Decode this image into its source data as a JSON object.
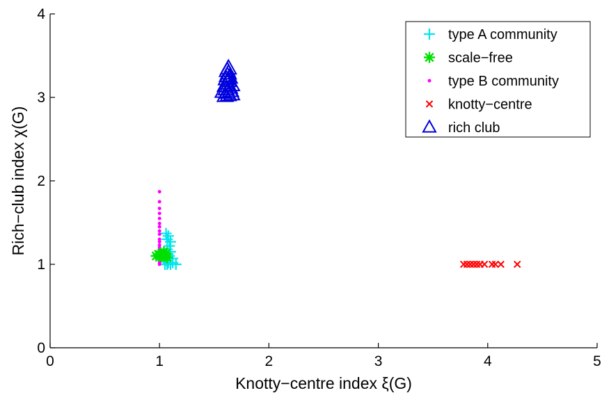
{
  "chart_data": {
    "type": "scatter",
    "xlabel": "Knotty−centre index ξ(G)",
    "ylabel": "Rich−club index χ(G)",
    "xlim": [
      0,
      5
    ],
    "ylim": [
      0,
      4
    ],
    "xticks": [
      "0",
      "1",
      "2",
      "3",
      "4",
      "5"
    ],
    "yticks": [
      "0",
      "1",
      "2",
      "3",
      "4"
    ],
    "grid": false,
    "legend_position": "top-right",
    "series": [
      {
        "name": "type A community",
        "marker": "plus",
        "color": "#00e5ee",
        "points": [
          [
            1.05,
            1.0
          ],
          [
            1.07,
            1.0
          ],
          [
            1.1,
            1.0
          ],
          [
            1.15,
            1.0
          ],
          [
            1.08,
            1.02
          ],
          [
            1.06,
            1.05
          ],
          [
            1.12,
            1.07
          ],
          [
            1.09,
            1.1
          ],
          [
            1.06,
            1.12
          ],
          [
            1.1,
            1.15
          ],
          [
            1.07,
            1.18
          ],
          [
            1.09,
            1.22
          ],
          [
            1.1,
            1.27
          ],
          [
            1.07,
            1.3
          ],
          [
            1.08,
            1.34
          ],
          [
            1.06,
            1.37
          ],
          [
            1.12,
            1.02
          ],
          [
            1.05,
            1.08
          ]
        ]
      },
      {
        "name": "scale−free",
        "marker": "asterisk",
        "color": "#00e000",
        "points": [
          [
            0.97,
            1.1
          ],
          [
            1.0,
            1.1
          ],
          [
            1.02,
            1.09
          ],
          [
            1.03,
            1.12
          ],
          [
            1.05,
            1.1
          ],
          [
            1.06,
            1.13
          ],
          [
            1.04,
            1.15
          ],
          [
            1.01,
            1.11
          ],
          [
            1.07,
            1.08
          ],
          [
            0.99,
            1.12
          ]
        ]
      },
      {
        "name": "type B community",
        "marker": "dot",
        "color": "#ff00ff",
        "points": [
          [
            1.0,
            1.87
          ],
          [
            1.0,
            1.75
          ],
          [
            1.0,
            1.67
          ],
          [
            1.0,
            1.61
          ],
          [
            1.0,
            1.55
          ],
          [
            1.0,
            1.49
          ],
          [
            1.0,
            1.45
          ],
          [
            1.0,
            1.4
          ],
          [
            1.0,
            1.36
          ],
          [
            1.0,
            1.3
          ],
          [
            1.0,
            1.27
          ],
          [
            1.0,
            1.23
          ],
          [
            1.0,
            1.2
          ],
          [
            1.0,
            1.17
          ],
          [
            1.0,
            1.14
          ],
          [
            1.0,
            1.11
          ],
          [
            1.0,
            1.08
          ],
          [
            1.0,
            1.05
          ],
          [
            1.0,
            1.02
          ],
          [
            1.0,
            1.0
          ]
        ]
      },
      {
        "name": "knotty−centre",
        "marker": "cross",
        "color": "#ff0000",
        "points": [
          [
            3.78,
            1.0
          ],
          [
            3.81,
            1.0
          ],
          [
            3.84,
            1.0
          ],
          [
            3.87,
            1.0
          ],
          [
            3.9,
            1.0
          ],
          [
            3.93,
            1.0
          ],
          [
            3.97,
            1.0
          ],
          [
            4.04,
            1.0
          ],
          [
            4.07,
            1.0
          ],
          [
            4.12,
            1.0
          ],
          [
            4.27,
            1.0
          ]
        ]
      },
      {
        "name": "rich club",
        "marker": "triangle",
        "color": "#0000dd",
        "points": [
          [
            1.6,
            3.02
          ],
          [
            1.63,
            3.03
          ],
          [
            1.66,
            3.04
          ],
          [
            1.62,
            3.06
          ],
          [
            1.58,
            3.07
          ],
          [
            1.65,
            3.08
          ],
          [
            1.61,
            3.1
          ],
          [
            1.64,
            3.12
          ],
          [
            1.6,
            3.14
          ],
          [
            1.66,
            3.15
          ],
          [
            1.62,
            3.17
          ],
          [
            1.63,
            3.2
          ],
          [
            1.61,
            3.22
          ],
          [
            1.64,
            3.24
          ],
          [
            1.62,
            3.26
          ],
          [
            1.63,
            3.29
          ],
          [
            1.62,
            3.32
          ],
          [
            1.63,
            3.35
          ]
        ]
      }
    ]
  }
}
